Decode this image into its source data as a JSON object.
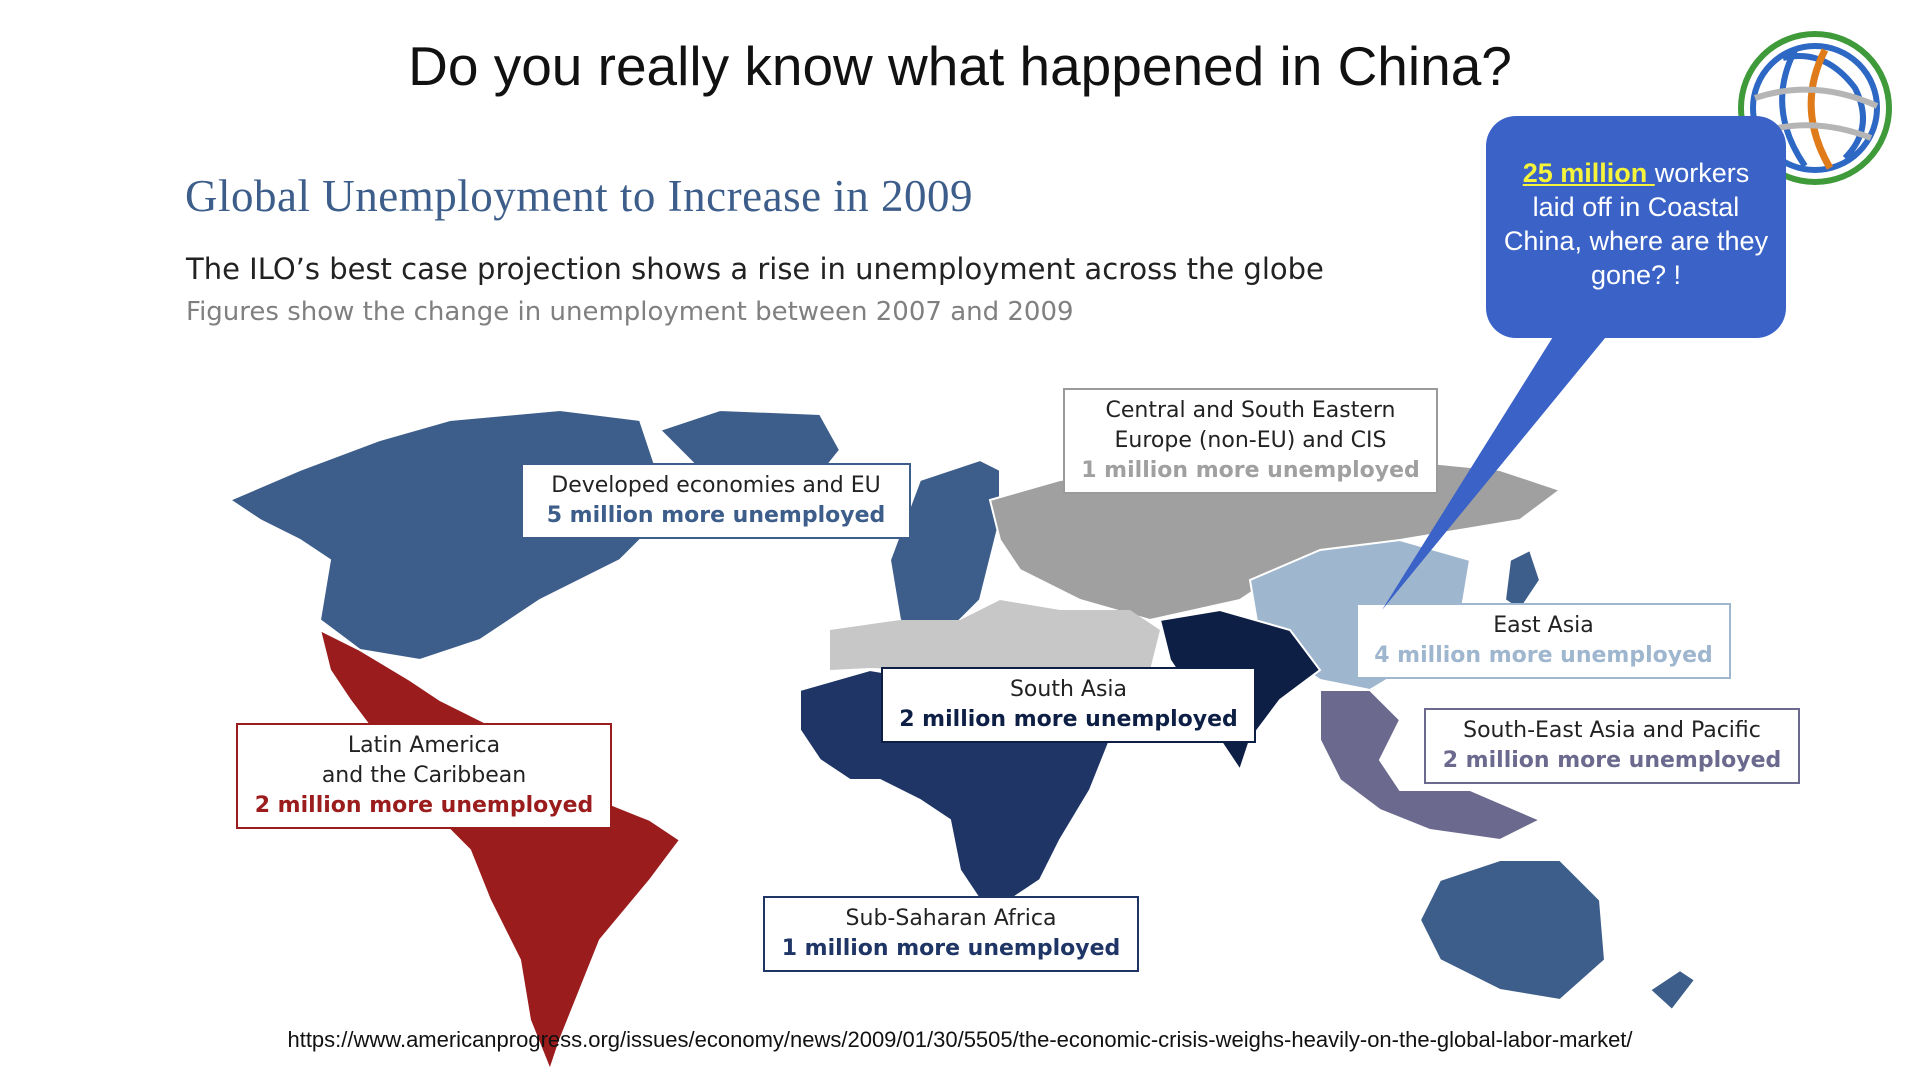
{
  "slide_title": "Do you really know what happened in China?",
  "infographic": {
    "title": "Global Unemployment to Increase in 2009",
    "subtitle": "The ILO’s best case projection shows a rise in unemployment across the globe",
    "note": "Figures show the change in unemployment between 2007 and 2009"
  },
  "regions": [
    {
      "name": "Developed economies and EU",
      "value_text": "5 million more unemployed",
      "color": "#3d5e8a"
    },
    {
      "name": "Central and South Eastern\nEurope (non-EU) and CIS",
      "value_text": "1 million more unemployed",
      "color": "#a0a0a0"
    },
    {
      "name": "East Asia",
      "value_text": "4 million more unemployed",
      "color": "#9fb6cf"
    },
    {
      "name": "South Asia",
      "value_text": "2 million more unemployed",
      "color": "#0e1f45"
    },
    {
      "name": "South-East Asia and Pacific",
      "value_text": "2 million more unemployed",
      "color": "#6b6a8e"
    },
    {
      "name": "Latin America\nand the Caribbean",
      "value_text": "2 million more unemployed",
      "color": "#9b1c1c"
    },
    {
      "name": "Sub-Saharan Africa",
      "value_text": "1 million more unemployed",
      "color": "#1f3566"
    }
  ],
  "callout": {
    "highlight": "25 million ",
    "text": "workers laid off in Coastal China, where are they gone? !",
    "color": "#3a62c7"
  },
  "source_url": "https://www.americanprogress.org/issues/economy/news/2009/01/30/5505/the-economic-crisis-weighs-heavily-on-the-global-labor-market/"
}
